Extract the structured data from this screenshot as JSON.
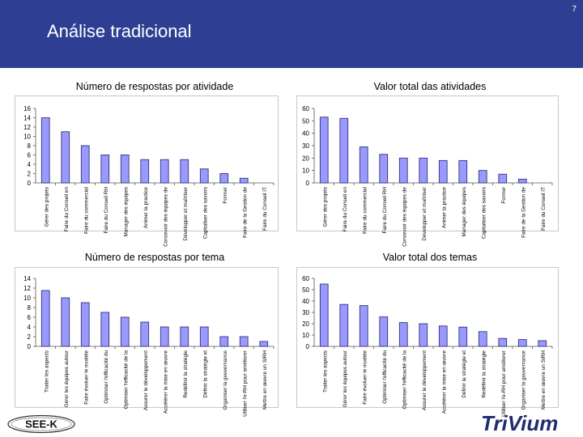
{
  "page": {
    "number": "7",
    "title": "Análise tradicional"
  },
  "logos": {
    "left_text": "SEE-K",
    "right_text": "TriVium"
  },
  "colors": {
    "header": "#2e3f93",
    "bar_fill": "#9999ff",
    "bar_stroke": "#33337a"
  },
  "chart_data": [
    {
      "type": "bar",
      "title": "Número de respostas por atividade",
      "ylim": [
        0,
        16
      ],
      "yticks": [
        0,
        2,
        4,
        6,
        8,
        10,
        12,
        14,
        16
      ],
      "categories": [
        "Gérer des projets",
        "Faire du Conseil en",
        "Faire du commercial",
        "Faire du Conseil RH",
        "Manager des équipes",
        "Animer la practice",
        "Concevoir des équipes de",
        "Développer et maîtriser",
        "Capitaliser des savoirs",
        "Former",
        "Faire de la Gestion de",
        "Faire du Conseil IT"
      ],
      "values": [
        14,
        11,
        8,
        6,
        6,
        5,
        5,
        5,
        3,
        2,
        1,
        0
      ]
    },
    {
      "type": "bar",
      "title": "Valor total das atividades",
      "ylim": [
        0,
        60
      ],
      "yticks": [
        0,
        10,
        20,
        30,
        40,
        50,
        60
      ],
      "categories": [
        "Gérer des projets",
        "Faire du Conseil en",
        "Faire du commercial",
        "Faire du Conseil RH",
        "Concevoir des équipes de",
        "Développer et maîtriser",
        "Animer la practice",
        "Manager des équipes",
        "Capitaliser des savoirs",
        "Former",
        "Faire de la Gestion de",
        "Faire du Conseil IT"
      ],
      "values": [
        53,
        52,
        29,
        23,
        20,
        20,
        18,
        18,
        10,
        7,
        3,
        0
      ]
    },
    {
      "type": "bar",
      "title": "Número de respostas por  tema",
      "ylim": [
        0,
        14
      ],
      "yticks": [
        0,
        2,
        4,
        6,
        8,
        10,
        12,
        14
      ],
      "categories": [
        "Traiter les aspects",
        "Gérer les équipes autour",
        "Faire évoluer le modèle",
        "Optimiser l'efficacité du",
        "Optimiser l'efficacité de la",
        "Assurer le développement",
        "Accélérer la mise en œuvre",
        "Redéfinir la stratégie",
        "Définir la stratégie et",
        "Organiser la gouvernance",
        "Utiliser l'e-RH pour améliorer",
        "Mettre en œuvre un SIRH"
      ],
      "values": [
        11.5,
        10,
        9,
        7,
        6,
        5,
        4,
        4,
        4,
        2,
        2,
        1
      ]
    },
    {
      "type": "bar",
      "title": "Valor total dos temas",
      "ylim": [
        0,
        60
      ],
      "yticks": [
        0,
        10,
        20,
        30,
        40,
        50,
        60
      ],
      "categories": [
        "Traiter les aspects",
        "Gérer les équipes autour",
        "Faire évoluer le modèle",
        "Optimiser l'efficacité du",
        "Optimiser l'efficacité de la",
        "Assurer le développement",
        "Accélérer la mise en œuvre",
        "Définir la stratégie et",
        "Redéfinir la stratégie",
        "Utiliser l'e-RH pour améliorer",
        "Organiser la gouvernance",
        "Mettre en œuvre un SIRH"
      ],
      "values": [
        55,
        37,
        36,
        26,
        21,
        20,
        18,
        17,
        13,
        7,
        6,
        5
      ]
    }
  ]
}
